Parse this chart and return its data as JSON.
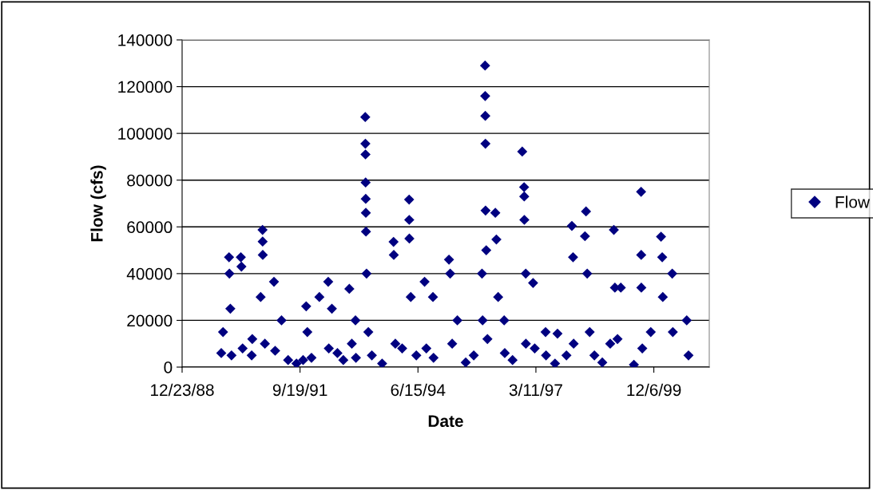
{
  "chart_data": {
    "type": "scatter",
    "xlabel": "Date",
    "ylabel": "Flow (cfs)",
    "xlim": [
      "1988-12-23",
      "2001-03-20"
    ],
    "xticks": [
      {
        "value": "1988-12-23",
        "label": "12/23/88"
      },
      {
        "value": "1991-09-19",
        "label": "9/19/91"
      },
      {
        "value": "1994-06-15",
        "label": "6/15/94"
      },
      {
        "value": "1997-03-11",
        "label": "3/11/97"
      },
      {
        "value": "1999-12-06",
        "label": "12/6/99"
      }
    ],
    "ylim": [
      0,
      140000
    ],
    "yticks": [
      0,
      20000,
      40000,
      60000,
      80000,
      100000,
      120000,
      140000
    ],
    "grid": "y",
    "legend": "right",
    "marker": "diamond",
    "series": [
      {
        "name": "Flow",
        "color": "#000080",
        "x": [
          "1989-11-20",
          "1989-12-05",
          "1990-01-25",
          "1990-01-28",
          "1990-02-05",
          "1990-02-15",
          "1990-05-05",
          "1990-05-10",
          "1990-05-20",
          "1990-08-05",
          "1990-08-10",
          "1990-11-05",
          "1990-11-06",
          "1990-11-07",
          "1990-10-20",
          "1990-11-25",
          "1991-02-10",
          "1991-02-20",
          "1991-04-15",
          "1991-06-10",
          "1991-08-20",
          "1991-10-15",
          "1991-11-10",
          "1991-11-20",
          "1991-12-25",
          "1992-03-01",
          "1992-05-15",
          "1992-05-20",
          "1992-06-15",
          "1992-08-01",
          "1992-09-20",
          "1992-11-10",
          "1992-12-01",
          "1993-01-01",
          "1993-01-05",
          "1993-03-25",
          "1993-03-26",
          "1993-03-27",
          "1993-03-28",
          "1993-03-29",
          "1993-03-30",
          "1993-03-31",
          "1993-04-05",
          "1993-04-20",
          "1993-05-20",
          "1993-08-15",
          "1993-11-20",
          "1993-11-22",
          "1993-12-05",
          "1994-02-01",
          "1994-04-01",
          "1994-04-02",
          "1994-04-03",
          "1994-04-15",
          "1994-06-01",
          "1994-08-10",
          "1994-08-25",
          "1994-10-20",
          "1994-10-25",
          "1995-03-05",
          "1995-03-15",
          "1995-04-01",
          "1995-05-15",
          "1995-07-25",
          "1995-10-01",
          "1995-12-10",
          "1995-12-15",
          "1996-01-05",
          "1996-01-06",
          "1996-01-07",
          "1996-01-08",
          "1996-01-09",
          "1996-01-15",
          "1996-01-25",
          "1996-04-01",
          "1996-04-10",
          "1996-04-25",
          "1996-06-15",
          "1996-06-20",
          "1996-08-25",
          "1996-11-15",
          "1996-12-01",
          "1996-12-02",
          "1996-12-03",
          "1996-12-15",
          "1996-12-16",
          "1997-02-15",
          "1997-03-01",
          "1997-06-01",
          "1997-06-05",
          "1997-08-20",
          "1997-09-10",
          "1997-11-25",
          "1998-01-10",
          "1998-01-20",
          "1998-01-25",
          "1998-05-10",
          "1998-05-01",
          "1998-05-20",
          "1998-06-10",
          "1998-07-20",
          "1998-09-25",
          "1998-12-01",
          "1999-01-01",
          "1999-01-10",
          "1999-02-01",
          "1999-03-01",
          "1999-06-20",
          "1999-08-20",
          "1999-08-21",
          "1999-08-22",
          "1999-08-30",
          "1999-11-10",
          "2000-02-05",
          "2000-02-15",
          "2000-02-20",
          "2000-05-10",
          "2000-05-15",
          "2000-09-10",
          "2000-09-25"
        ],
        "values": [
          6000,
          15000,
          47000,
          40000,
          25000,
          5000,
          47000,
          43000,
          8000,
          5000,
          12000,
          58700,
          53700,
          48000,
          30000,
          10000,
          36500,
          7000,
          20000,
          3000,
          1500,
          3000,
          26000,
          15000,
          4000,
          30000,
          36500,
          8000,
          25000,
          6000,
          3000,
          33500,
          10000,
          20000,
          4000,
          107000,
          95600,
          91000,
          79000,
          72000,
          66000,
          58000,
          40000,
          15000,
          5000,
          1500,
          53600,
          48000,
          10000,
          8000,
          71700,
          63000,
          55000,
          30000,
          5000,
          36500,
          8000,
          30000,
          4000,
          46000,
          40000,
          10000,
          20000,
          2000,
          5000,
          40000,
          20000,
          129000,
          116000,
          107500,
          95600,
          67000,
          50000,
          12000,
          66000,
          54600,
          30000,
          20000,
          6000,
          3000,
          92200,
          77000,
          73000,
          63000,
          40000,
          10000,
          36000,
          8000,
          15000,
          5000,
          1500,
          14300,
          5000,
          60400,
          47000,
          10000,
          66600,
          56000,
          40000,
          15000,
          5000,
          2000,
          10000,
          58700,
          34000,
          12000,
          34000,
          1000,
          75000,
          48000,
          34000,
          8000,
          15000,
          55800,
          47000,
          30000,
          40000,
          15000,
          20000,
          5000
        ]
      }
    ]
  }
}
